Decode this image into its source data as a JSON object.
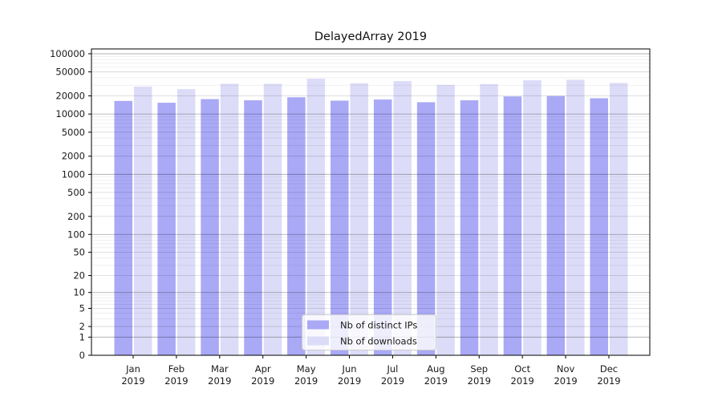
{
  "chart_data": {
    "type": "bar",
    "title": "DelayedArray 2019",
    "categories": [
      "Jan",
      "Feb",
      "Mar",
      "Apr",
      "May",
      "Jun",
      "Jul",
      "Aug",
      "Sep",
      "Oct",
      "Nov",
      "Dec"
    ],
    "category_year": "2019",
    "series": [
      {
        "name": "Nb of distinct IPs",
        "color": "#a9a9f6",
        "values": [
          16500,
          15400,
          17700,
          16900,
          19000,
          16700,
          17400,
          15700,
          16900,
          19600,
          19900,
          18300
        ]
      },
      {
        "name": "Nb of downloads",
        "color": "#dcdcf8",
        "values": [
          28600,
          25900,
          31800,
          31800,
          38600,
          32400,
          35200,
          30500,
          31400,
          36300,
          37100,
          32800
        ]
      }
    ],
    "yscale": "log10(1+v)",
    "ylim": [
      0,
      100000
    ],
    "ytick_labels": [
      "0",
      "1",
      "2",
      "5",
      "10",
      "20",
      "50",
      "100",
      "200",
      "500",
      "1000",
      "2000",
      "5000",
      "10000",
      "20000",
      "50000",
      "100000"
    ],
    "grid": "horizontal major and minor gridlines, drawn above bars",
    "legend_position": "lower center inside plot",
    "colors": {
      "axis": "#000000",
      "tick_text": "#1a1a1a",
      "title_text": "#111111",
      "grid_major": "rgba(0,0,0,0.30)",
      "grid_labeled": "rgba(0,0,0,0.14)",
      "grid_minor": "rgba(0,0,0,0.065)",
      "legend_border": "#cccccc",
      "legend_background": "rgba(255,255,255,0.8)"
    }
  }
}
